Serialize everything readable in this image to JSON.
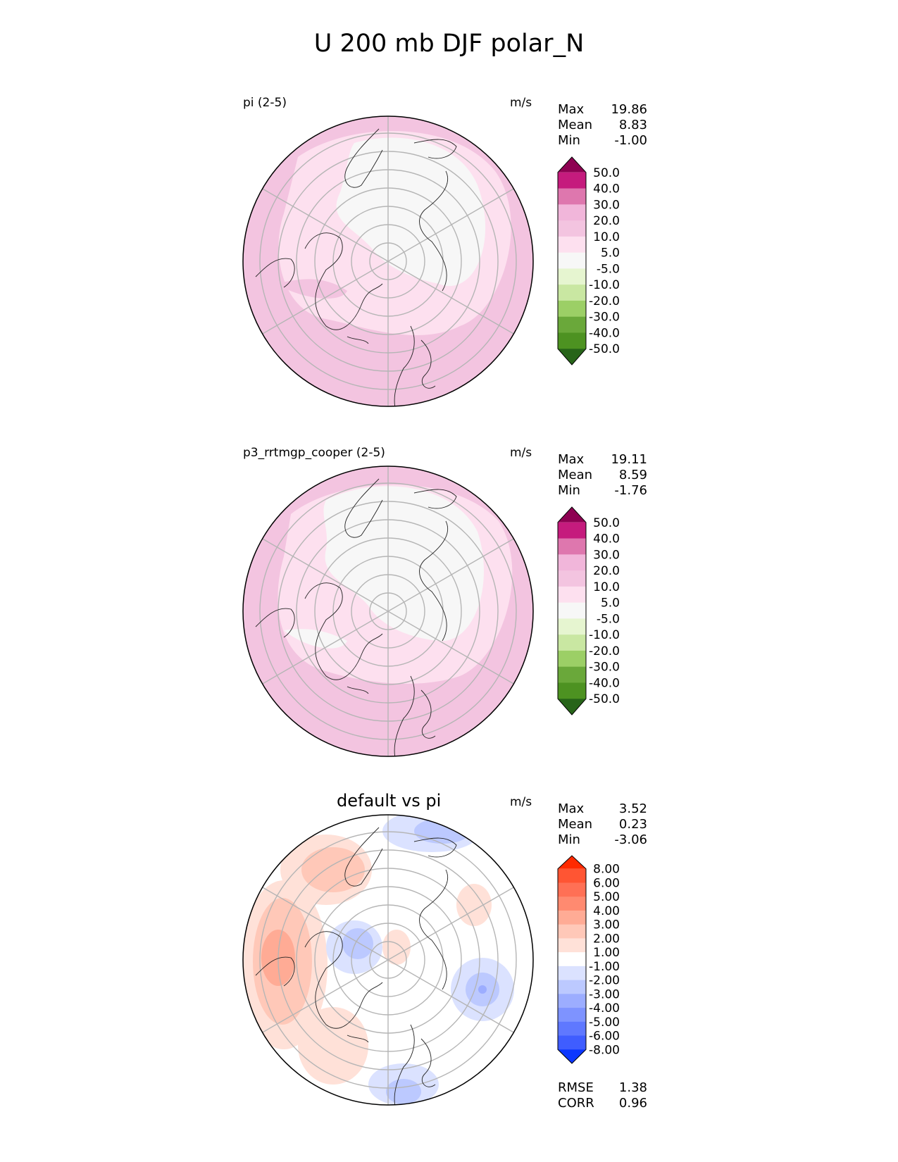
{
  "page_title": "U 200 mb DJF polar_N",
  "panels": [
    {
      "title": "pi (2-5)",
      "units": "m/s",
      "stats": [
        {
          "label": "Max",
          "value": "19.86"
        },
        {
          "label": "Mean",
          "value": "8.83"
        },
        {
          "label": "Min",
          "value": "-1.00"
        }
      ],
      "colorbar": {
        "levels": [
          "50.0",
          "40.0",
          "30.0",
          "20.0",
          "10.0",
          "5.0",
          "-5.0",
          "-10.0",
          "-20.0",
          "-30.0",
          "-40.0",
          "-50.0"
        ],
        "colors": [
          "#8e0152",
          "#c51b7d",
          "#de77ae",
          "#f1b6da",
          "#f3c4e0",
          "#fde0ef",
          "#f7f7f7",
          "#e6f5d0",
          "#c9e7a2",
          "#9ccf66",
          "#6aa83a",
          "#4d9221",
          "#276419"
        ]
      }
    },
    {
      "title": "p3_rrtmgp_cooper (2-5)",
      "units": "m/s",
      "stats": [
        {
          "label": "Max",
          "value": "19.11"
        },
        {
          "label": "Mean",
          "value": "8.59"
        },
        {
          "label": "Min",
          "value": "-1.76"
        }
      ],
      "colorbar": {
        "levels": [
          "50.0",
          "40.0",
          "30.0",
          "20.0",
          "10.0",
          "5.0",
          "-5.0",
          "-10.0",
          "-20.0",
          "-30.0",
          "-40.0",
          "-50.0"
        ],
        "colors": [
          "#8e0152",
          "#c51b7d",
          "#de77ae",
          "#f1b6da",
          "#f3c4e0",
          "#fde0ef",
          "#f7f7f7",
          "#e6f5d0",
          "#c9e7a2",
          "#9ccf66",
          "#6aa83a",
          "#4d9221",
          "#276419"
        ]
      }
    },
    {
      "title": "default vs pi",
      "units": "m/s",
      "stats": [
        {
          "label": "Max",
          "value": "3.52"
        },
        {
          "label": "Mean",
          "value": "0.23"
        },
        {
          "label": "Min",
          "value": "-3.06"
        }
      ],
      "colorbar": {
        "levels": [
          "8.00",
          "6.00",
          "5.00",
          "4.00",
          "3.00",
          "2.00",
          "1.00",
          "-1.00",
          "-2.00",
          "-3.00",
          "-4.00",
          "-5.00",
          "-6.00",
          "-8.00"
        ],
        "colors": [
          "#ff2a00",
          "#ff5533",
          "#ff7055",
          "#ff8a70",
          "#ffab95",
          "#ffc8b8",
          "#ffe1d8",
          "#ffffff",
          "#dbe2ff",
          "#bcc9ff",
          "#9cadff",
          "#7e93ff",
          "#5f78ff",
          "#3f5dff",
          "#0c37ff"
        ]
      },
      "metrics": [
        {
          "label": "RMSE",
          "value": "1.38"
        },
        {
          "label": "CORR",
          "value": "0.96"
        }
      ]
    }
  ]
}
